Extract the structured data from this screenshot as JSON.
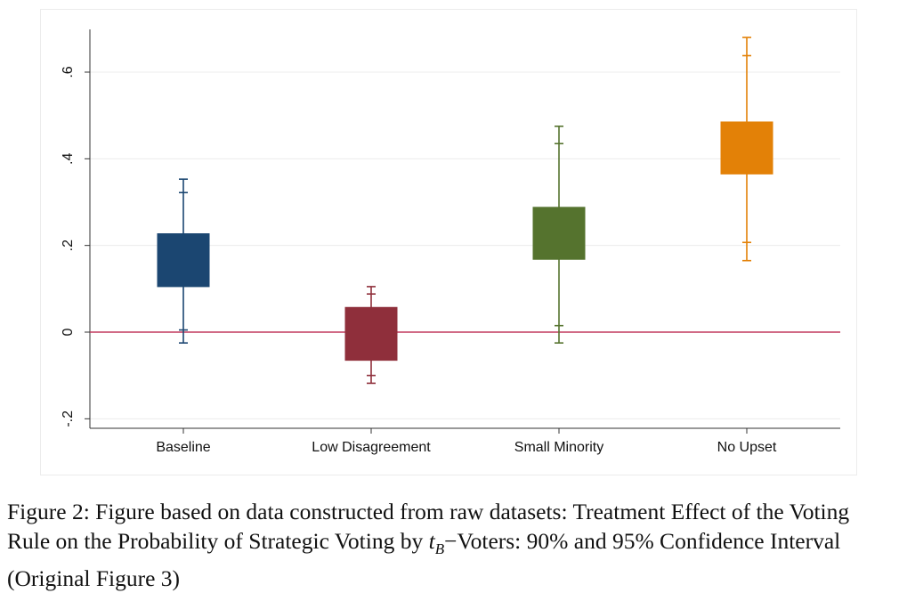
{
  "chart_data": {
    "type": "box",
    "categories": [
      "Baseline",
      "Low Disagreement",
      "Small Minority",
      "No Upset"
    ],
    "series": [
      {
        "category": "Baseline",
        "color": "#1b4671",
        "ci90": [
          0.105,
          0.227
        ],
        "ci95_inner": [
          0.005,
          0.322
        ],
        "ci95_outer": [
          -0.025,
          0.353
        ]
      },
      {
        "category": "Low Disagreement",
        "color": "#8f2f3b",
        "ci90": [
          -0.065,
          0.057
        ],
        "ci95_inner": [
          -0.1,
          0.088
        ],
        "ci95_outer": [
          -0.118,
          0.105
        ]
      },
      {
        "category": "Small Minority",
        "color": "#55732e",
        "ci90": [
          0.168,
          0.288
        ],
        "ci95_inner": [
          0.015,
          0.435
        ],
        "ci95_outer": [
          -0.025,
          0.475
        ]
      },
      {
        "category": "No Upset",
        "color": "#e38107",
        "ci90": [
          0.365,
          0.485
        ],
        "ci95_inner": [
          0.207,
          0.638
        ],
        "ci95_outer": [
          0.165,
          0.68
        ]
      }
    ],
    "yticks": [
      -0.2,
      0,
      0.2,
      0.4,
      0.6
    ],
    "ytick_labels": [
      "-.2",
      "0",
      ".2",
      ".4",
      ".6"
    ],
    "ylim": [
      -0.22,
      0.7
    ],
    "reference_line": {
      "y": 0,
      "color": "#c23a5e"
    },
    "grid": true,
    "title": "",
    "xlabel": "",
    "ylabel": ""
  },
  "caption": {
    "part1": "Figure 2: Figure based on data constructed from raw datasets: Treatment Effect of the Voting Rule on the Probability of Strategic Voting by ",
    "var": "t",
    "sub": "B",
    "part2": "−Voters: 90% and 95% Confidence Interval (Original Figure 3)"
  }
}
